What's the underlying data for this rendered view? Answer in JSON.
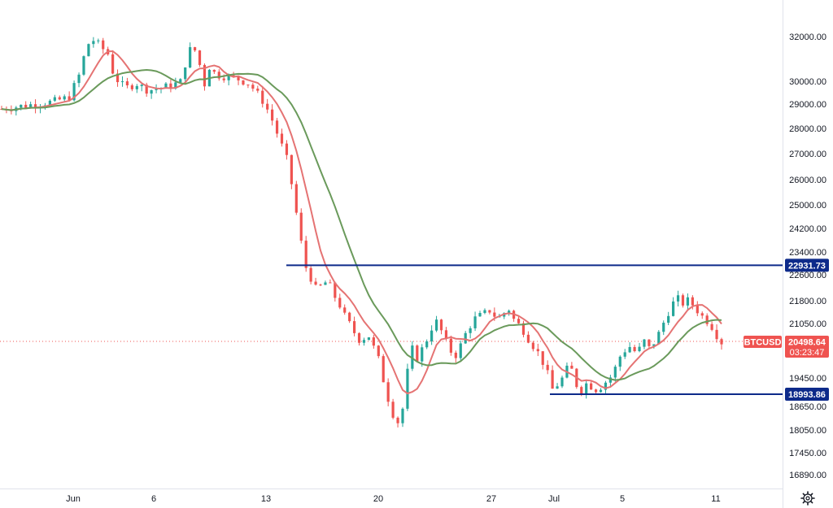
{
  "chart_data": {
    "type": "candlestick",
    "symbol": "BTCUSD",
    "y_ticks": [
      "32000.00",
      "30000.00",
      "29000.00",
      "28000.00",
      "27000.00",
      "26000.00",
      "25000.00",
      "24200.00",
      "23400.00",
      "22600.00",
      "21800.00",
      "21050.00",
      "19450.00",
      "18650.00",
      "18050.00",
      "17450.00",
      "16890.00"
    ],
    "x_ticks": [
      "Jun",
      "6",
      "13",
      "20",
      "27",
      "Jul",
      "5",
      "11"
    ],
    "scale": "log",
    "last_price": "20498.64",
    "countdown": "03:23:47",
    "levels": [
      {
        "label": "22931.73",
        "value": 22931.73
      },
      {
        "label": "18993.86",
        "value": 18993.86
      }
    ],
    "price_path": [
      [
        0,
        28800
      ],
      [
        3,
        28900
      ],
      [
        6,
        29000
      ],
      [
        9,
        29100
      ],
      [
        12,
        29300
      ],
      [
        14,
        30400
      ],
      [
        15,
        31500
      ],
      [
        16,
        31900
      ],
      [
        17,
        31700
      ],
      [
        19,
        31200
      ],
      [
        20,
        30200
      ],
      [
        22,
        29700
      ],
      [
        24,
        29900
      ],
      [
        26,
        29600
      ],
      [
        28,
        29700
      ],
      [
        30,
        29800
      ],
      [
        32,
        30000
      ],
      [
        33,
        31200
      ],
      [
        34,
        31600
      ],
      [
        35,
        31000
      ],
      [
        36,
        29800
      ],
      [
        37,
        30700
      ],
      [
        38,
        30300
      ],
      [
        40,
        30200
      ],
      [
        42,
        30100
      ],
      [
        44,
        29900
      ],
      [
        46,
        29300
      ],
      [
        47,
        28900
      ],
      [
        48,
        28400
      ],
      [
        49,
        27800
      ],
      [
        50,
        27200
      ],
      [
        51,
        26600
      ],
      [
        52,
        25200
      ],
      [
        53,
        24000
      ],
      [
        54,
        22900
      ],
      [
        55,
        22500
      ],
      [
        56,
        22100
      ],
      [
        57,
        22300
      ],
      [
        58,
        22400
      ],
      [
        59,
        22000
      ],
      [
        60,
        21700
      ],
      [
        61,
        21300
      ],
      [
        62,
        21000
      ],
      [
        63,
        20700
      ],
      [
        64,
        20500
      ],
      [
        65,
        20800
      ],
      [
        66,
        20400
      ],
      [
        67,
        20000
      ],
      [
        68,
        19300
      ],
      [
        69,
        18700
      ],
      [
        70,
        18300
      ],
      [
        71,
        18200
      ],
      [
        72,
        19500
      ],
      [
        73,
        20300
      ],
      [
        74,
        20000
      ],
      [
        75,
        20400
      ],
      [
        76,
        20700
      ],
      [
        77,
        21200
      ],
      [
        78,
        20900
      ],
      [
        79,
        20500
      ],
      [
        80,
        20200
      ],
      [
        81,
        20100
      ],
      [
        82,
        20600
      ],
      [
        83,
        20900
      ],
      [
        84,
        21200
      ],
      [
        85,
        21300
      ],
      [
        86,
        21400
      ],
      [
        87,
        21500
      ],
      [
        88,
        21200
      ],
      [
        89,
        21300
      ],
      [
        90,
        21600
      ],
      [
        91,
        21200
      ],
      [
        92,
        21000
      ],
      [
        93,
        20800
      ],
      [
        94,
        20500
      ],
      [
        95,
        20300
      ],
      [
        96,
        20000
      ],
      [
        97,
        19600
      ],
      [
        98,
        19100
      ],
      [
        99,
        19300
      ],
      [
        100,
        19500
      ],
      [
        101,
        19900
      ],
      [
        102,
        19300
      ],
      [
        103,
        19100
      ],
      [
        104,
        19300
      ],
      [
        105,
        19200
      ],
      [
        106,
        19100
      ],
      [
        107,
        19300
      ],
      [
        108,
        19400
      ],
      [
        109,
        19700
      ],
      [
        110,
        20100
      ],
      [
        111,
        20300
      ],
      [
        112,
        20400
      ],
      [
        113,
        20100
      ],
      [
        114,
        20600
      ],
      [
        115,
        20300
      ],
      [
        116,
        20500
      ],
      [
        117,
        20800
      ],
      [
        118,
        21200
      ],
      [
        119,
        21600
      ],
      [
        120,
        21900
      ],
      [
        121,
        21700
      ],
      [
        122,
        21800
      ],
      [
        123,
        21650
      ],
      [
        124,
        21400
      ],
      [
        125,
        21200
      ],
      [
        126,
        21050
      ],
      [
        127,
        20750
      ],
      [
        128,
        20500
      ]
    ],
    "ma_fast_color": "#e57373",
    "ma_slow_color": "#6a9a5b",
    "up_color": "#26a69a",
    "down_color": "#ef5350",
    "level_color": "#0d2a8a",
    "grid": false
  },
  "icons": {
    "settings": "gear-icon"
  }
}
